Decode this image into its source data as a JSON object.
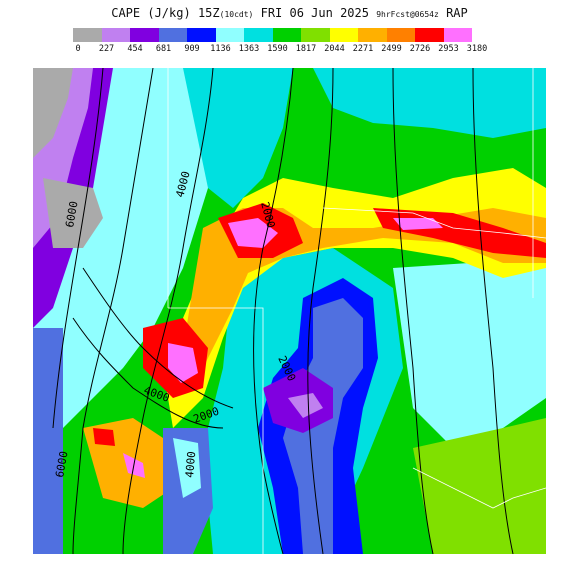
{
  "header": {
    "field": "CAPE (J/kg)",
    "valid": "15Z",
    "valid_local": "(10cdt)",
    "date": "FRI 06 Jun 2025",
    "forecast": "9hrFcst@0654z",
    "model": "RAP"
  },
  "colorbar": {
    "colors": [
      "#aaaaaa",
      "#c080f0",
      "#8000e0",
      "#5070e0",
      "#0010ff",
      "#90ffff",
      "#00e0e0",
      "#00d000",
      "#80e000",
      "#ffff00",
      "#ffb000",
      "#ff8000",
      "#ff0000",
      "#ff70ff"
    ],
    "labels": [
      "0",
      "227",
      "454",
      "681",
      "909",
      "1136",
      "1363",
      "1590",
      "1817",
      "2044",
      "2271",
      "2499",
      "2726",
      "2953",
      "3180"
    ]
  },
  "map": {
    "contour_labels": [
      {
        "text": "6000"
      },
      {
        "text": "4000"
      },
      {
        "text": "2000"
      },
      {
        "text": "2000"
      },
      {
        "text": "4000"
      },
      {
        "text": "2000"
      },
      {
        "text": "6000"
      },
      {
        "text": "4000"
      }
    ]
  }
}
